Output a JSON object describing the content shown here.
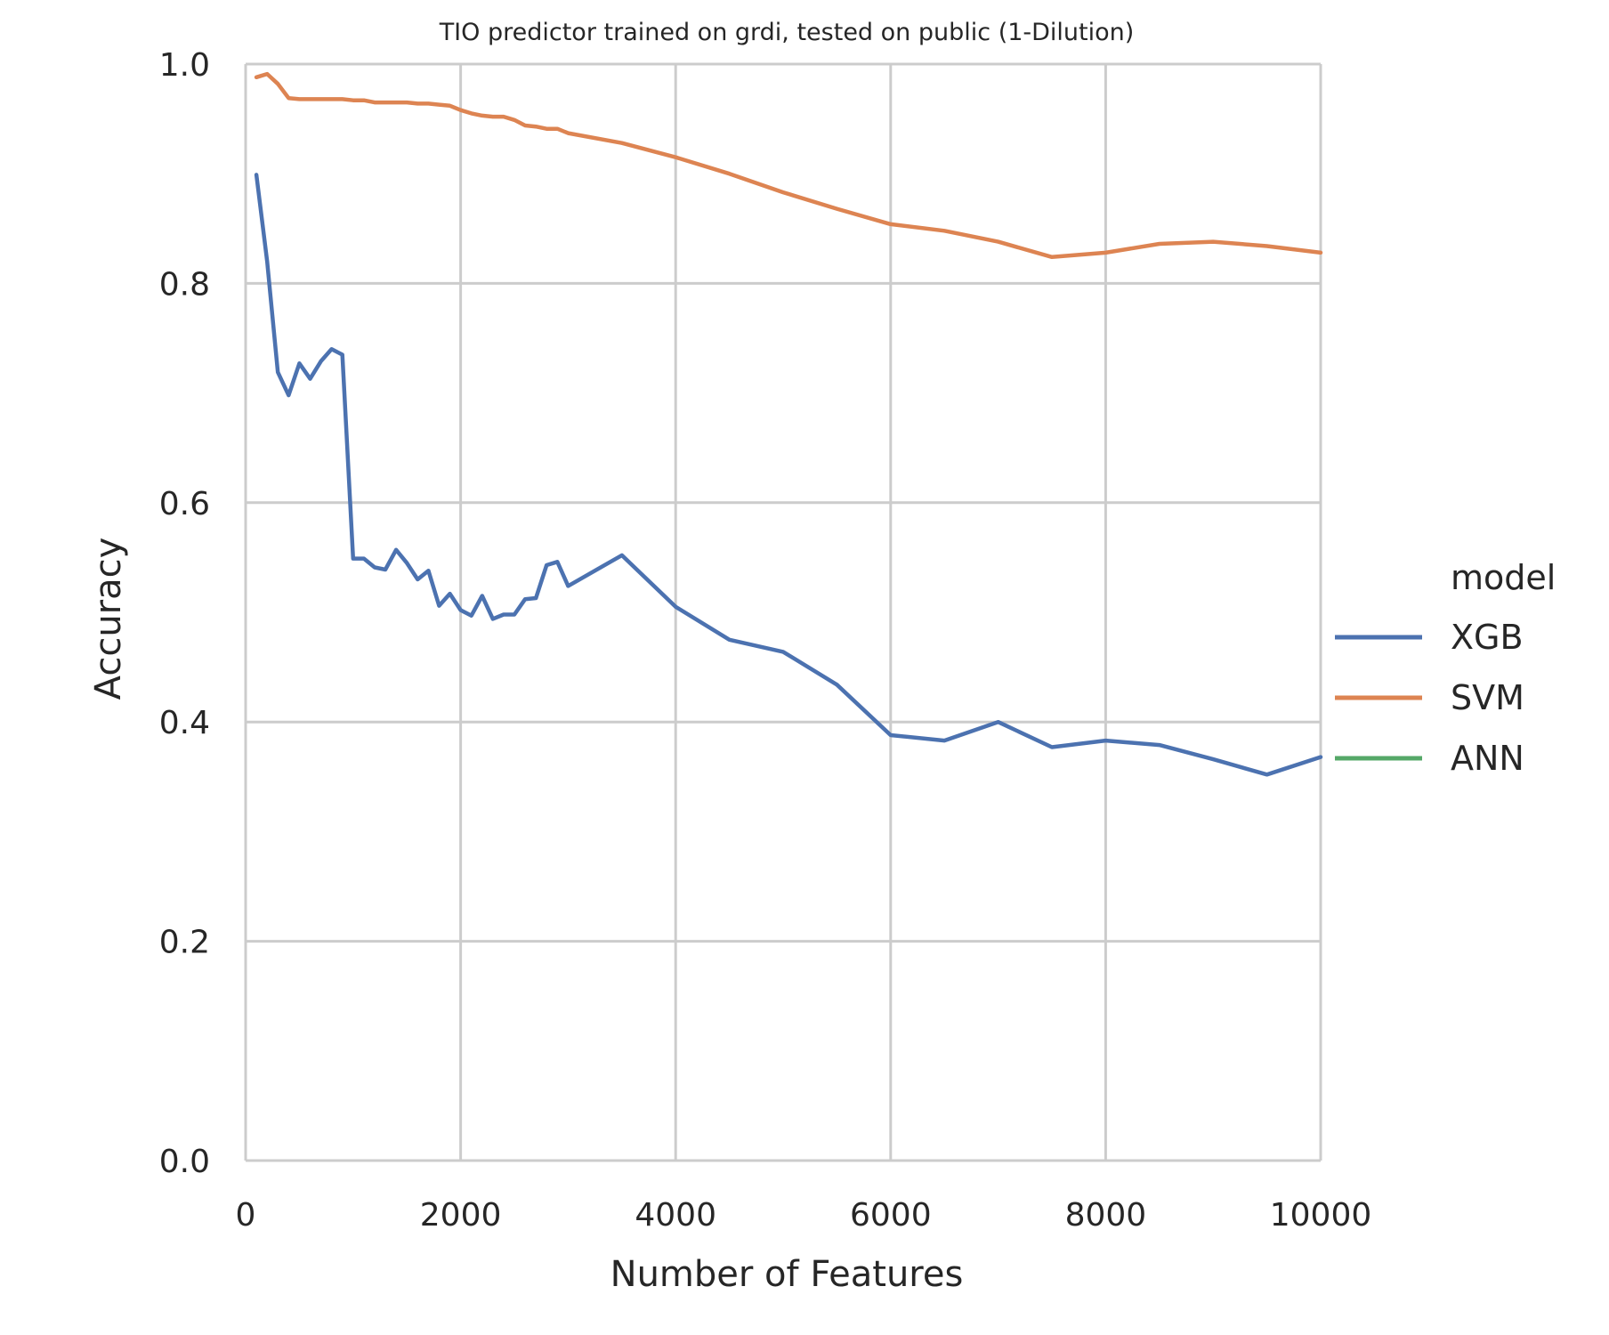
{
  "chart_data": {
    "type": "line",
    "title": "TIO predictor trained on grdi, tested on public (1-Dilution)",
    "xlabel": "Number of Features",
    "ylabel": "Accuracy",
    "xlim": [
      0,
      10000
    ],
    "ylim": [
      0,
      1.0
    ],
    "x_ticks": [
      0,
      2000,
      4000,
      6000,
      8000,
      10000
    ],
    "x_tick_labels": [
      "0",
      "2000",
      "4000",
      "6000",
      "8000",
      "10000"
    ],
    "y_ticks": [
      0,
      0.2,
      0.4,
      0.6,
      0.8,
      1.0
    ],
    "y_tick_labels": [
      "0.0",
      "0.2",
      "0.4",
      "0.6",
      "0.8",
      "1.0"
    ],
    "grid": true,
    "legend": {
      "title": "model",
      "placement": "right"
    },
    "series": [
      {
        "name": "XGB",
        "color": "#4c72b0",
        "x": [
          100,
          200,
          300,
          400,
          500,
          600,
          700,
          800,
          900,
          1000,
          1100,
          1200,
          1300,
          1400,
          1500,
          1600,
          1700,
          1800,
          1900,
          2000,
          2100,
          2200,
          2300,
          2400,
          2500,
          2600,
          2700,
          2800,
          2900,
          3000,
          3500,
          4000,
          4500,
          5000,
          5500,
          6000,
          6500,
          7000,
          7500,
          8000,
          8500,
          9000,
          9500,
          10000
        ],
        "y": [
          0.899,
          0.82,
          0.719,
          0.698,
          0.727,
          0.713,
          0.729,
          0.74,
          0.735,
          0.549,
          0.549,
          0.541,
          0.539,
          0.557,
          0.545,
          0.53,
          0.538,
          0.506,
          0.517,
          0.502,
          0.497,
          0.515,
          0.494,
          0.498,
          0.498,
          0.512,
          0.513,
          0.543,
          0.546,
          0.524,
          0.552,
          0.505,
          0.475,
          0.464,
          0.434,
          0.388,
          0.383,
          0.4,
          0.377,
          0.383,
          0.379,
          0.366,
          0.352,
          0.368
        ]
      },
      {
        "name": "SVM",
        "color": "#dd8452",
        "x": [
          100,
          200,
          300,
          400,
          500,
          600,
          700,
          800,
          900,
          1000,
          1100,
          1200,
          1300,
          1400,
          1500,
          1600,
          1700,
          1800,
          1900,
          2000,
          2100,
          2200,
          2300,
          2400,
          2500,
          2600,
          2700,
          2800,
          2900,
          3000,
          3500,
          4000,
          4500,
          5000,
          5500,
          6000,
          6500,
          7000,
          7500,
          8000,
          8500,
          9000,
          9500,
          10000
        ],
        "y": [
          0.988,
          0.991,
          0.982,
          0.969,
          0.968,
          0.968,
          0.968,
          0.968,
          0.968,
          0.967,
          0.967,
          0.965,
          0.965,
          0.965,
          0.965,
          0.964,
          0.964,
          0.963,
          0.962,
          0.958,
          0.955,
          0.953,
          0.952,
          0.952,
          0.949,
          0.944,
          0.943,
          0.941,
          0.941,
          0.937,
          0.928,
          0.915,
          0.9,
          0.883,
          0.868,
          0.854,
          0.848,
          0.838,
          0.824,
          0.828,
          0.836,
          0.838,
          0.834,
          0.828
        ]
      },
      {
        "name": "ANN",
        "color": "#55a868",
        "x": [],
        "y": []
      }
    ]
  }
}
